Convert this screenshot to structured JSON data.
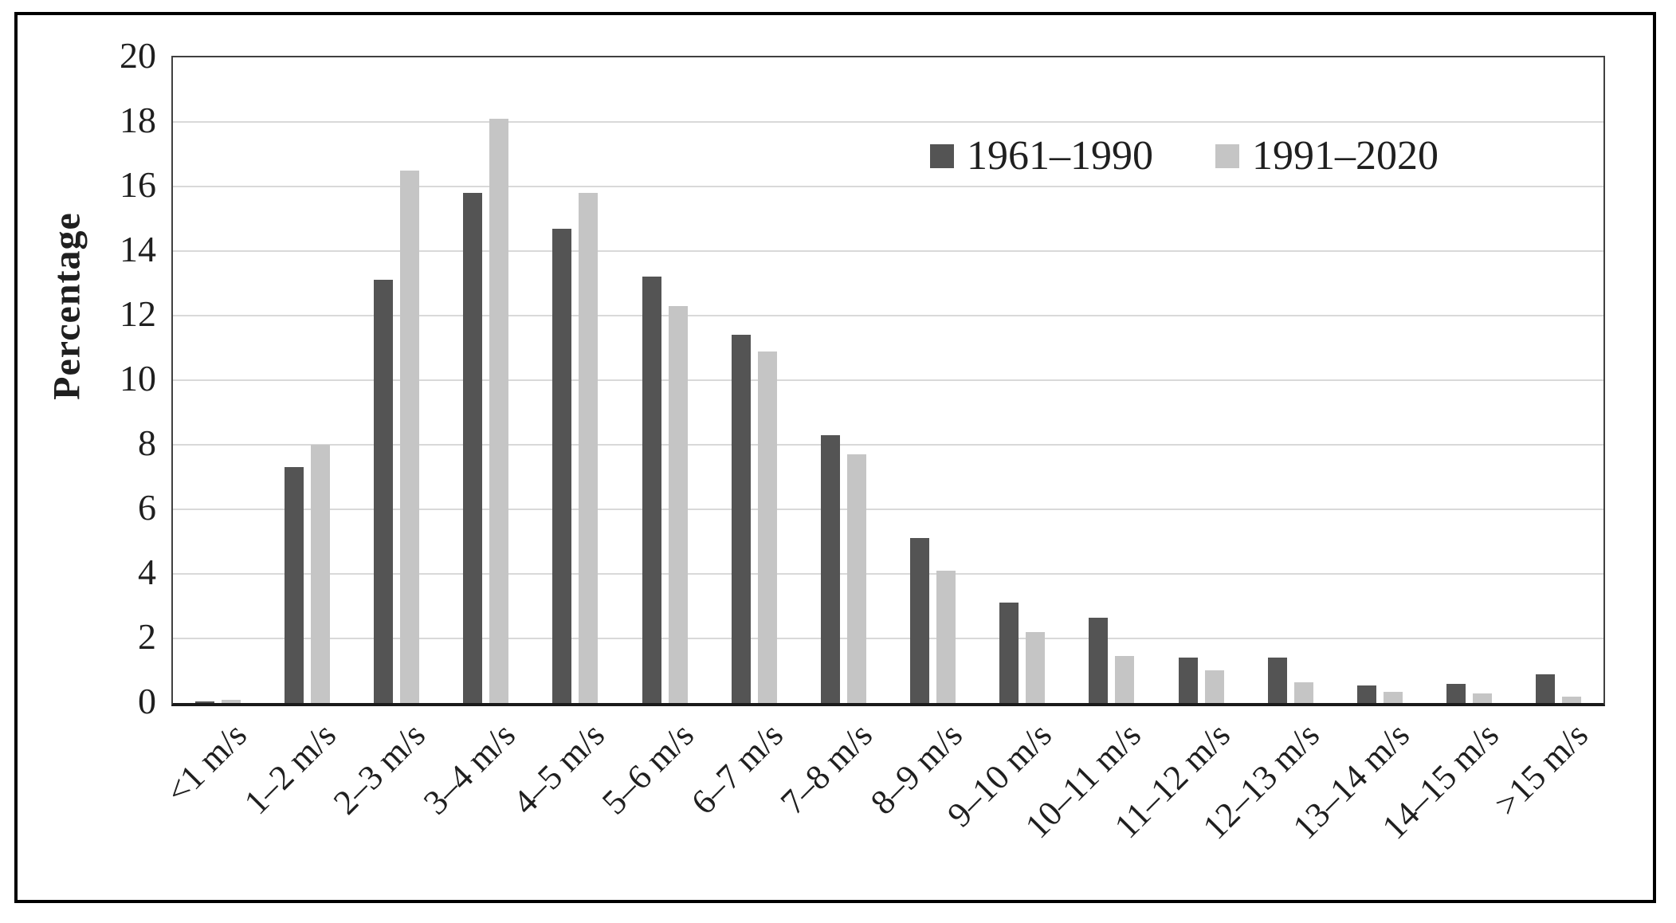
{
  "figure": {
    "background_color": "#ffffff",
    "frame_border_color": "#000000",
    "gridline_color": "#d9d9d9",
    "axis_line_color": "#1a1a1a"
  },
  "chart_data": {
    "type": "bar",
    "title": "",
    "xlabel": "",
    "ylabel": "Percentage",
    "ylim": [
      0,
      20
    ],
    "yticks": [
      0,
      2,
      4,
      6,
      8,
      10,
      12,
      14,
      16,
      18,
      20
    ],
    "grid": true,
    "legend_position": "top-right-inside",
    "categories": [
      "<1 m/s",
      "1–2 m/s",
      "2–3 m/s",
      "3–4 m/s",
      "4–5 m/s",
      "5–6 m/s",
      "6–7 m/s",
      "7–8 m/s",
      "8–9 m/s",
      "9–10 m/s",
      "10–11 m/s",
      "11–12 m/s",
      "12–13 m/s",
      "13–14 m/s",
      "14–15 m/s",
      ">15 m/s"
    ],
    "series": [
      {
        "name": "1961–1990",
        "color": "#545454",
        "values": [
          0.05,
          7.3,
          13.1,
          15.8,
          14.7,
          13.2,
          11.4,
          8.3,
          5.1,
          3.1,
          2.65,
          1.4,
          1.4,
          0.55,
          0.6,
          0.9
        ]
      },
      {
        "name": "1991–2020",
        "color": "#c5c5c5",
        "values": [
          0.1,
          8.0,
          16.5,
          18.1,
          15.8,
          12.3,
          10.9,
          7.7,
          4.1,
          2.2,
          1.45,
          1.0,
          0.65,
          0.35,
          0.3,
          0.2
        ]
      }
    ]
  }
}
